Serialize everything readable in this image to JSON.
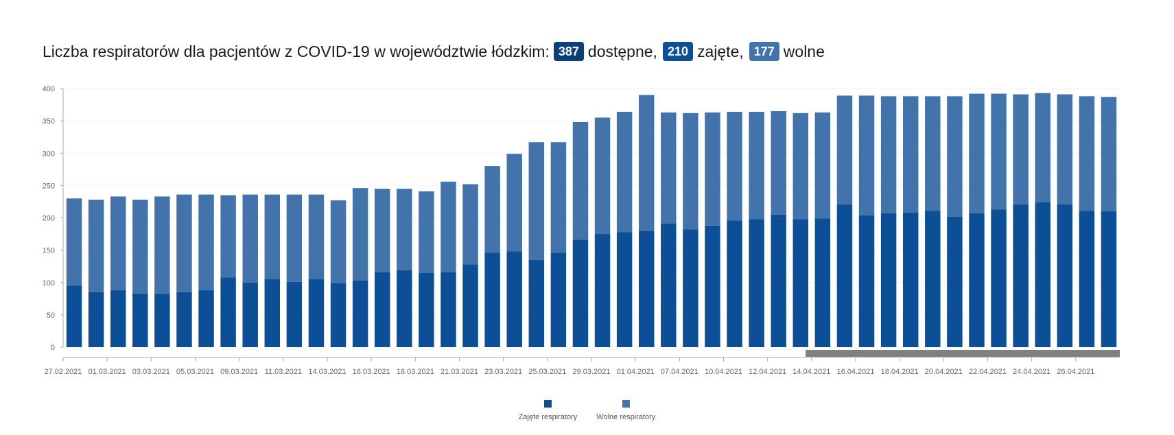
{
  "header": {
    "title_prefix": "Liczba respiratorów dla pacjentów z COVID-19 w województwie łódzkim:",
    "available_value": "387",
    "available_label": "dostępne,",
    "occupied_value": "210",
    "occupied_label": "zajęte,",
    "free_value": "177",
    "free_label": "wolne"
  },
  "colors": {
    "occupied": "#0c4f96",
    "free": "#4274ab",
    "badge_available": "#0c3f7a",
    "badge_occupied": "#0c4f96",
    "badge_free": "#4274ab",
    "scrollbar": "#808080"
  },
  "chart_data": {
    "type": "bar",
    "stacked": true,
    "title": "",
    "xlabel": "",
    "ylabel": "",
    "ylim": [
      0,
      400
    ],
    "yticks": [
      0,
      50,
      100,
      150,
      200,
      250,
      300,
      350,
      400
    ],
    "grid": true,
    "legend_position": "bottom",
    "x_tick_labels": [
      "27.02.2021",
      "01.03.2021",
      "03.03.2021",
      "05.03.2021",
      "09.03.2021",
      "11.03.2021",
      "14.03.2021",
      "16.03.2021",
      "18.03.2021",
      "21.03.2021",
      "23.03.2021",
      "25.03.2021",
      "29.03.2021",
      "01.04.2021",
      "07.04.2021",
      "10.04.2021",
      "12.04.2021",
      "14.04.2021",
      "16.04.2021",
      "18.04.2021",
      "20.04.2021",
      "22.04.2021",
      "24.04.2021",
      "26.04.2021"
    ],
    "series": [
      {
        "name": "Zajęte respiratory",
        "values": [
          95,
          85,
          88,
          83,
          83,
          85,
          88,
          108,
          100,
          105,
          101,
          105,
          99,
          103,
          116,
          119,
          115,
          116,
          128,
          146,
          148,
          135,
          146,
          166,
          175,
          178,
          180,
          191,
          182,
          188,
          196,
          198,
          205,
          198,
          199,
          221,
          204,
          207,
          208,
          211,
          202,
          207,
          213,
          221,
          224,
          221,
          211,
          210
        ]
      },
      {
        "name": "Wolne respiratory",
        "values": [
          135,
          143,
          145,
          145,
          150,
          151,
          148,
          127,
          136,
          131,
          135,
          131,
          128,
          143,
          129,
          126,
          126,
          140,
          124,
          134,
          151,
          182,
          171,
          182,
          180,
          186,
          210,
          172,
          180,
          175,
          168,
          166,
          160,
          164,
          164,
          168,
          185,
          181,
          180,
          177,
          186,
          185,
          179,
          170,
          169,
          170,
          177,
          177
        ]
      }
    ]
  },
  "legend": [
    {
      "label": "Zajęte respiratory"
    },
    {
      "label": "Wolne respiratory"
    }
  ]
}
